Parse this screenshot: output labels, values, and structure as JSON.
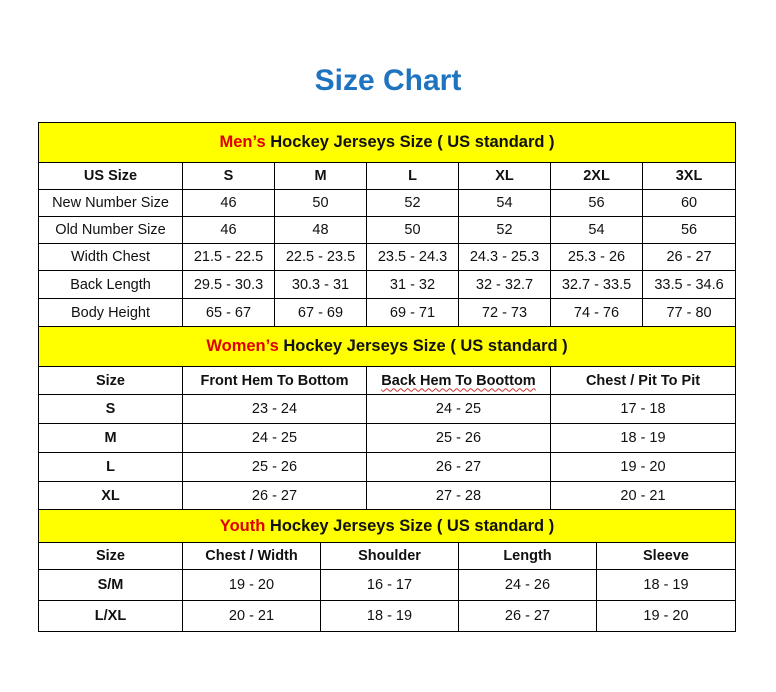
{
  "title": "Size Chart",
  "colors": {
    "title": "#1f74c0",
    "header_bg": "#ffff00",
    "accent": "#e00000"
  },
  "sections": [
    {
      "accent": "Men’s",
      "heading": " Hockey Jerseys Size ( US standard )",
      "columns": [
        "US Size",
        "S",
        "M",
        "L",
        "XL",
        "2XL",
        "3XL"
      ],
      "rows": [
        [
          "New Number Size",
          "46",
          "50",
          "52",
          "54",
          "56",
          "60"
        ],
        [
          "Old Number Size",
          "46",
          "48",
          "50",
          "52",
          "54",
          "56"
        ],
        [
          "Width Chest",
          "21.5 - 22.5",
          "22.5 - 23.5",
          "23.5 - 24.3",
          "24.3 - 25.3",
          "25.3 - 26",
          "26 - 27"
        ],
        [
          "Back Length",
          "29.5 - 30.3",
          "30.3 - 31",
          "31 - 32",
          "32 - 32.7",
          "32.7 - 33.5",
          "33.5 - 34.6"
        ],
        [
          "Body Height",
          "65 - 67",
          "67 - 69",
          "69 - 71",
          "72 - 73",
          "74 - 76",
          "77 - 80"
        ]
      ]
    },
    {
      "accent": "Women’s",
      "heading": " Hockey Jerseys Size ( US standard )",
      "columns": [
        "Size",
        "Front Hem To Bottom",
        "Back Hem To Boottom",
        "Chest / Pit To Pit"
      ],
      "rows": [
        [
          "S",
          "23 - 24",
          "24 - 25",
          "17 - 18"
        ],
        [
          "M",
          "24 - 25",
          "25 - 26",
          "18 - 19"
        ],
        [
          "L",
          "25 - 26",
          "26 - 27",
          "19 - 20"
        ],
        [
          "XL",
          "26 - 27",
          "27 - 28",
          "20 - 21"
        ]
      ]
    },
    {
      "accent": "Youth",
      "heading": " Hockey Jerseys Size ( US standard )",
      "columns": [
        "Size",
        "Chest / Width",
        "Shoulder",
        "Length",
        "Sleeve"
      ],
      "rows": [
        [
          "S/M",
          "19 - 20",
          "16 - 17",
          "24 - 26",
          "18 - 19"
        ],
        [
          "L/XL",
          "20 - 21",
          "18 - 19",
          "26 - 27",
          "19 - 20"
        ]
      ]
    }
  ]
}
